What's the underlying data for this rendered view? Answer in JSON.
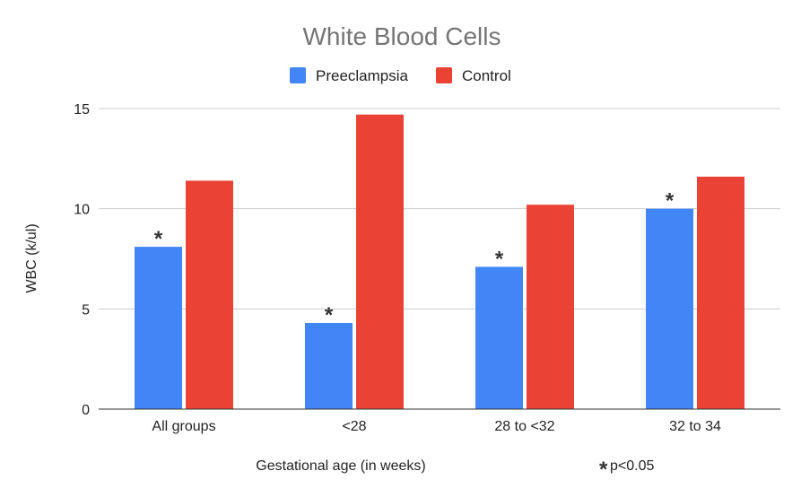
{
  "chart_data": {
    "type": "bar",
    "title": "White Blood Cells",
    "xlabel": "Gestational age (in weeks)",
    "ylabel": "WBC (k/ul)",
    "ylim": [
      0,
      15
    ],
    "yticks": [
      0,
      5,
      10,
      15
    ],
    "grid": true,
    "legend_position": "top",
    "categories": [
      "All groups",
      "<28",
      "28 to <32",
      "32 to 34"
    ],
    "series": [
      {
        "name": "Preeclampsia",
        "color": "#4285F4",
        "values": [
          8.1,
          4.3,
          7.1,
          10.0
        ],
        "significant": [
          true,
          true,
          true,
          true
        ]
      },
      {
        "name": "Control",
        "color": "#EA4335",
        "values": [
          11.4,
          14.7,
          10.2,
          11.6
        ]
      }
    ],
    "significance_marker": "*",
    "annotation": "p<0.05"
  }
}
